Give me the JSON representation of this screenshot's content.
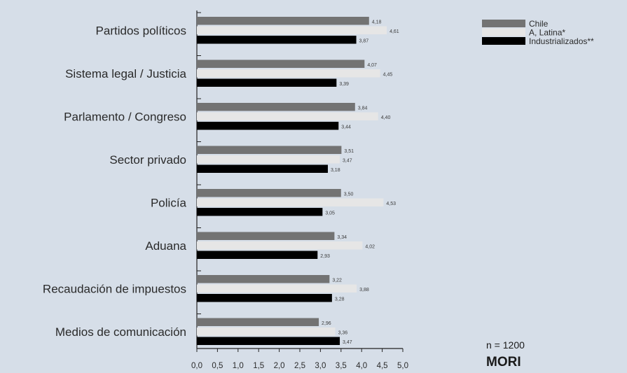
{
  "chart_data": {
    "type": "bar",
    "orientation": "horizontal",
    "categories": [
      "Partidos políticos",
      "Sistema legal / Justicia",
      "Parlamento / Congreso",
      "Sector privado",
      "Policía",
      "Aduana",
      "Recaudación de impuestos",
      "Medios de comunicación"
    ],
    "series": [
      {
        "name": "Chile",
        "color": "#737373",
        "values": [
          4.18,
          4.07,
          3.84,
          3.51,
          3.5,
          3.34,
          3.22,
          2.96
        ],
        "labels": [
          "4,18",
          "4,07",
          "3,84",
          "3,51",
          "3,50",
          "3,34",
          "3,22",
          "2,96"
        ]
      },
      {
        "name": "A, Latina*",
        "color": "#e6e6e6",
        "values": [
          4.61,
          4.45,
          4.4,
          3.47,
          4.53,
          4.02,
          3.88,
          3.36
        ],
        "labels": [
          "4,61",
          "4,45",
          "4,40",
          "3,47",
          "4,53",
          "4,02",
          "3,88",
          "3,36"
        ]
      },
      {
        "name": "Industrializados**",
        "color": "#000000",
        "values": [
          3.87,
          3.39,
          3.44,
          3.18,
          3.05,
          2.93,
          3.28,
          3.47
        ],
        "labels": [
          "3,87",
          "3,39",
          "3,44",
          "3,18",
          "3,05",
          "2,93",
          "3,28",
          "3,47"
        ]
      }
    ],
    "xlim": [
      0,
      5
    ],
    "x_ticks": [
      "0,0",
      "0,5",
      "1,0",
      "1,5",
      "2,0",
      "2,5",
      "3,0",
      "3,5",
      "4,0",
      "4,5",
      "5,0"
    ],
    "grid": false,
    "legend_position": "top-right"
  },
  "annotations": {
    "sample_size": "n = 1200",
    "brand": "MORI"
  }
}
